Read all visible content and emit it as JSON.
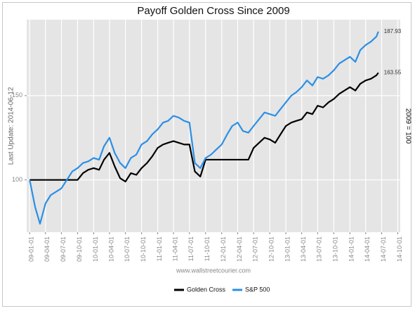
{
  "chart_data": {
    "type": "line",
    "title": "Payoff Golden Cross Since 2009",
    "y_label": "Last Update: 2014-06-12",
    "y2_label": "2009 = 100",
    "annotation": "www.wallstreetcourier.com",
    "x": [
      "09-01-01",
      "09-02-01",
      "09-03-01",
      "09-04-01",
      "09-05-01",
      "09-06-01",
      "09-07-01",
      "09-08-01",
      "09-09-01",
      "09-10-01",
      "09-11-01",
      "09-12-01",
      "10-01-01",
      "10-02-01",
      "10-03-01",
      "10-04-01",
      "10-05-01",
      "10-06-01",
      "10-07-01",
      "10-08-01",
      "10-09-01",
      "10-10-01",
      "10-11-01",
      "10-12-01",
      "11-01-01",
      "11-02-01",
      "11-03-01",
      "11-04-01",
      "11-05-01",
      "11-06-01",
      "11-07-01",
      "11-08-01",
      "11-09-01",
      "11-10-01",
      "11-11-01",
      "11-12-01",
      "12-01-01",
      "12-02-01",
      "12-03-01",
      "12-04-01",
      "12-05-01",
      "12-06-01",
      "12-07-01",
      "12-08-01",
      "12-09-01",
      "12-10-01",
      "12-11-01",
      "12-12-01",
      "13-01-01",
      "13-02-01",
      "13-03-01",
      "13-04-01",
      "13-05-01",
      "13-06-01",
      "13-07-01",
      "13-08-01",
      "13-09-01",
      "13-10-01",
      "13-11-01",
      "13-12-01",
      "14-01-01",
      "14-02-01",
      "14-03-01",
      "14-04-01",
      "14-05-01",
      "14-06-01",
      "14-06-12"
    ],
    "series": [
      {
        "name": "Golden Cross",
        "color": "#000000",
        "values": [
          100,
          100,
          100,
          100,
          100,
          100,
          100,
          100,
          100,
          100,
          104,
          106,
          107,
          106,
          112,
          116,
          108,
          101,
          99,
          104,
          103,
          107,
          110,
          114,
          119,
          121,
          122,
          123,
          122,
          121,
          121,
          105,
          102,
          112,
          112,
          112,
          112,
          112,
          112,
          112,
          112,
          112,
          119,
          122,
          125,
          124,
          122,
          127,
          132,
          134,
          135,
          136,
          140,
          139,
          144,
          143,
          146,
          148,
          151,
          153,
          155,
          153,
          157,
          159,
          160,
          162,
          163.55
        ]
      },
      {
        "name": "S&P 500",
        "color": "#2b8fe6",
        "values": [
          100,
          84,
          74,
          86,
          91,
          93,
          95,
          100,
          105,
          107,
          110,
          111,
          113,
          112,
          120,
          125,
          116,
          110,
          107,
          113,
          115,
          121,
          123,
          127,
          130,
          134,
          135,
          138,
          137,
          135,
          134,
          110,
          107,
          113,
          115,
          118,
          121,
          127,
          132,
          134,
          129,
          128,
          132,
          136,
          140,
          139,
          138,
          142,
          146,
          150,
          152,
          155,
          159,
          156,
          161,
          160,
          162,
          165,
          169,
          171,
          173,
          170,
          177,
          180,
          182,
          185,
          187.93
        ]
      }
    ],
    "xlim": [
      "08-12-15",
      "14-10-15"
    ],
    "xticks": [
      "09-01-01",
      "09-04-01",
      "09-07-01",
      "09-10-01",
      "10-01-01",
      "10-04-01",
      "10-07-01",
      "10-10-01",
      "11-01-01",
      "11-04-01",
      "11-07-01",
      "11-10-01",
      "12-01-01",
      "12-04-01",
      "12-07-01",
      "12-10-01",
      "13-01-01",
      "13-04-01",
      "13-07-01",
      "13-10-01",
      "14-01-01",
      "14-04-01",
      "14-07-01",
      "14-10-01"
    ],
    "ylim": [
      69,
      195
    ],
    "yticks": [
      100,
      150
    ],
    "grid": true,
    "legend": "bottom"
  }
}
